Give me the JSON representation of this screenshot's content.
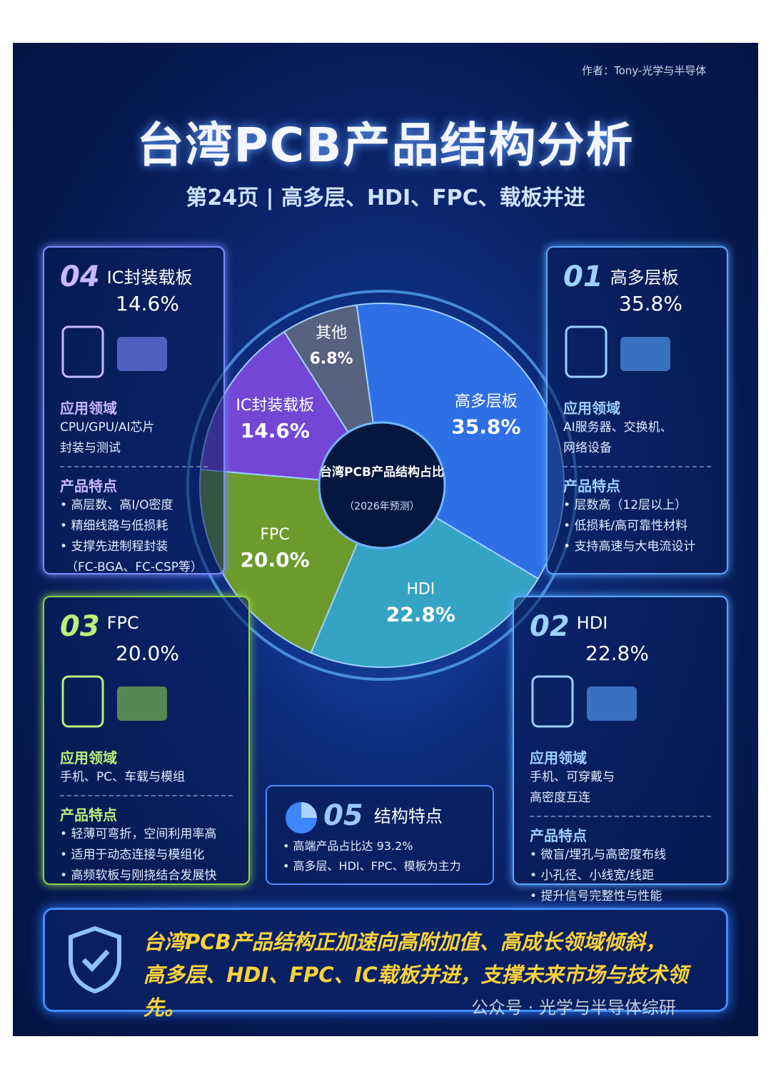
{
  "header": {
    "author": "作者：Tony-光学与半导体",
    "title": "台湾PCB产品结构分析",
    "subtitle": "第24页 | 高多层、HDI、FPC、载板并进"
  },
  "chart_data": {
    "type": "pie",
    "donut": true,
    "center_title": "台湾PCB产品结构占比",
    "center_note": "（2026年预测）",
    "categories": [
      "高多层板",
      "HDI",
      "FPC",
      "IC封装载板",
      "其他"
    ],
    "values": [
      35.8,
      22.8,
      20.0,
      14.6,
      6.8
    ],
    "value_labels": [
      "35.8%",
      "22.8%",
      "20.0%",
      "14.6%",
      "6.8%"
    ],
    "colors": [
      "#2f6fe6",
      "#35a3c4",
      "#6c9a2c",
      "#7346d6",
      "#56627e"
    ]
  },
  "cards": [
    {
      "num": "04",
      "name": "IC封装载板",
      "pct": "14.6%",
      "app_title": "应用领域",
      "apps": [
        "CPU/GPU/AI芯片",
        "封装与测试"
      ],
      "feat_title": "产品特点",
      "features": [
        "高层数、高I/O密度",
        "精细线路与低损耗",
        "支撑先进制程封装"
      ],
      "feature_note": "（FC-BGA、FC-CSP等）"
    },
    {
      "num": "01",
      "name": "高多层板",
      "pct": "35.8%",
      "app_title": "应用领域",
      "apps": [
        "AI服务器、交换机、",
        "网络设备"
      ],
      "feat_title": "产品特点",
      "features": [
        "层数高（12层以上）",
        "低损耗/高可靠性材料",
        "支持高速与大电流设计"
      ]
    },
    {
      "num": "03",
      "name": "FPC",
      "pct": "20.0%",
      "app_title": "应用领域",
      "apps": [
        "手机、PC、车载与模组"
      ],
      "feat_title": "产品特点",
      "features": [
        "轻薄可弯折，空间利用率高",
        "适用于动态连接与模组化",
        "高频软板与刚挠结合发展快"
      ]
    },
    {
      "num": "02",
      "name": "HDI",
      "pct": "22.8%",
      "app_title": "应用领域",
      "apps": [
        "手机、可穿戴与",
        "高密度互连"
      ],
      "feat_title": "产品特点",
      "features": [
        "微盲/埋孔与高密度布线",
        "小孔径、小线宽/线距",
        "提升信号完整性与性能"
      ]
    }
  ],
  "structure": {
    "num": "05",
    "title": "结构特点",
    "items": [
      "高端产品占比达 93.2%",
      "高多层、HDI、FPC、模板为主力"
    ]
  },
  "summary": [
    "台湾PCB产品结构正加速向高附加值、高成长领域倾斜，",
    "高多层、HDI、FPC、IC载板并进，支撑未来市场与技术领先。"
  ],
  "watermark": "公众号 · 光学与半导体综研"
}
